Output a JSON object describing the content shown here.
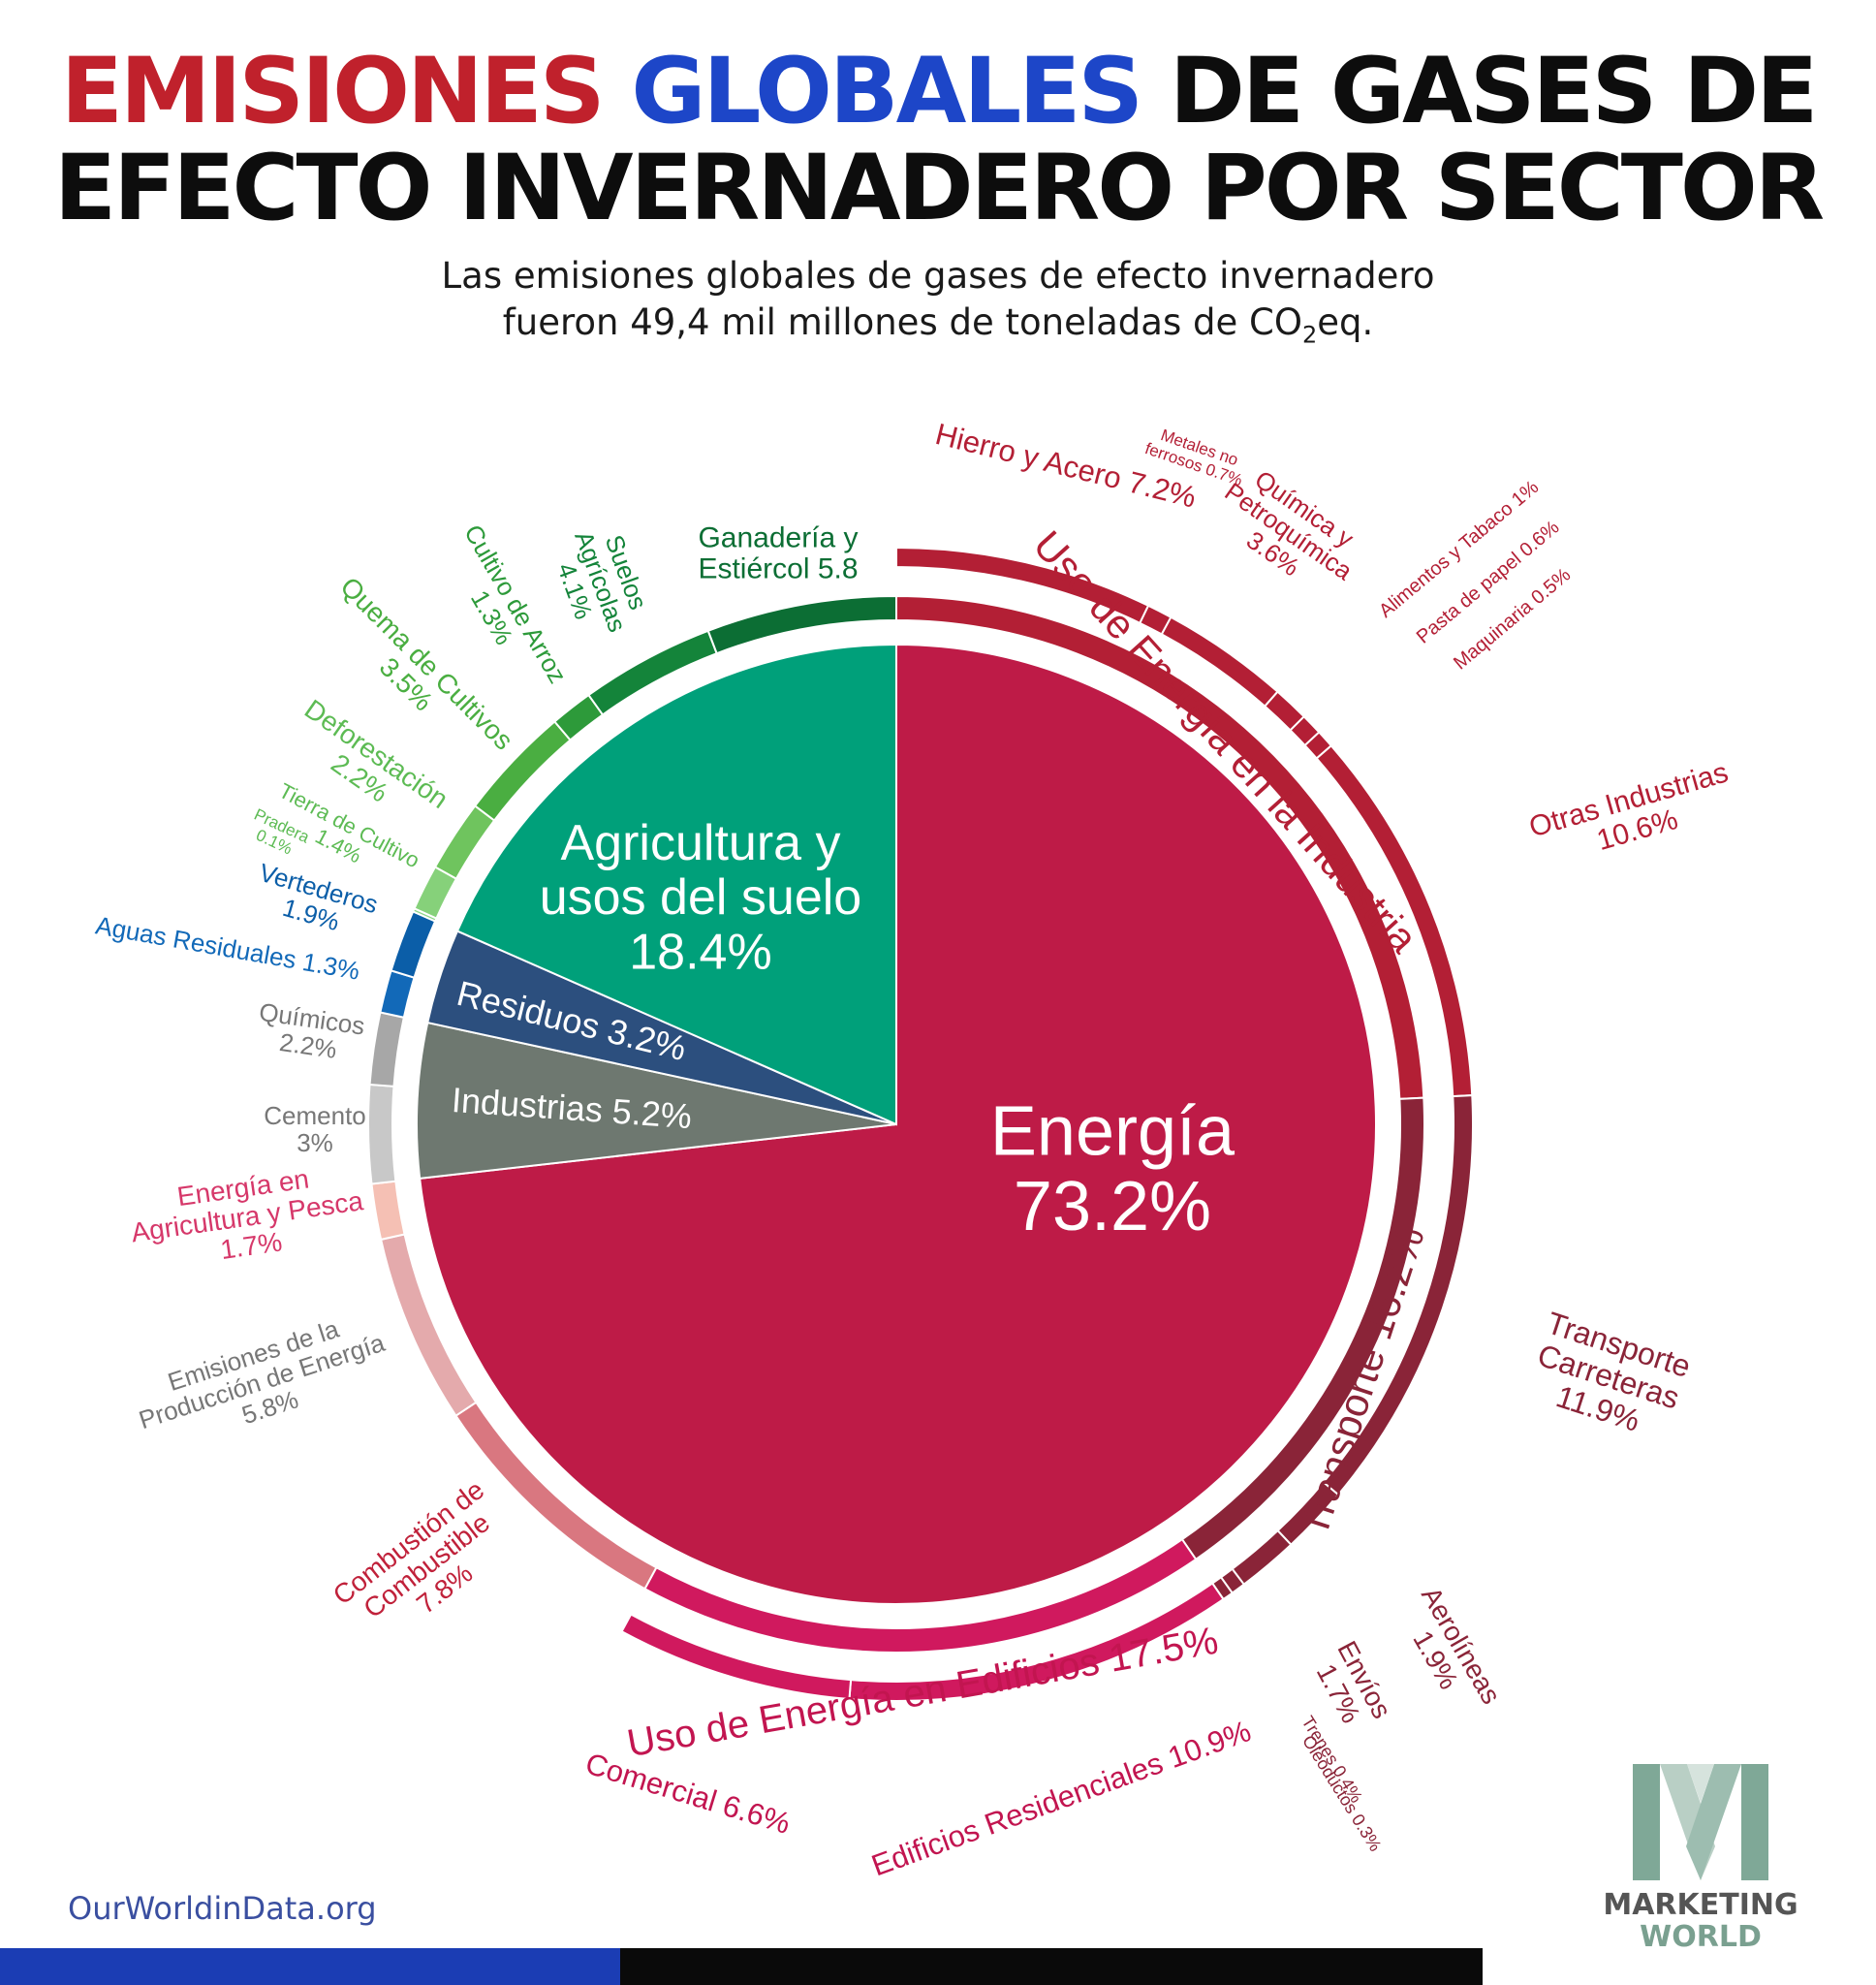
{
  "title": {
    "line1": [
      {
        "text": "EMISIONES ",
        "color": "#c0212c"
      },
      {
        "text": "GLOBALES",
        "color": "#1d46c8"
      },
      {
        "text": " DE GASES DE",
        "color": "#0d0d0d"
      }
    ],
    "line2": "EFECTO INVERNADERO POR SECTOR"
  },
  "subtitle": {
    "line1": "Las emisiones globales de gases de efecto invernadero",
    "line2_before": "fueron 49,4 mil millones de toneladas de CO",
    "line2_sub": "2",
    "line2_after": "eq."
  },
  "source": "OurWorldinData.org",
  "logo": {
    "line1": "MARKETING",
    "line2": "WORLD"
  },
  "chart_data": {
    "type": "pie",
    "title": "EMISIONES GLOBALES DE GASES DE EFECTO INVERNADERO POR SECTOR",
    "total_label": "49,4 mil millones de toneladas de CO2eq",
    "main_sectors": [
      {
        "name": "Energía",
        "value": 73.2,
        "label": "Energía\n73.2%",
        "color": "#be1b47"
      },
      {
        "name": "Industrias",
        "value": 5.2,
        "label": "Industrias 5.2%",
        "color": "#6e7870"
      },
      {
        "name": "Residuos",
        "value": 3.2,
        "label": "Residuos 3.2%",
        "color": "#2c4f7e"
      },
      {
        "name": "Agricultura y usos del suelo",
        "value": 18.4,
        "label": "Agricultura y\nusos del suelo\n18.4%",
        "color": "#00a07a"
      }
    ],
    "energy_groups": [
      {
        "name": "Uso de Energía en la Industria",
        "value": 24.2,
        "label": "Uso de Energía en la Industria",
        "color": "#b31f35"
      },
      {
        "name": "Transporte",
        "value": 16.2,
        "label": "Transporte 16.2%",
        "color": "#8a2438"
      },
      {
        "name": "Uso de Energía en Edificios",
        "value": 17.5,
        "label": "Uso de Energía en Edificios 17.5%",
        "color": "#d0195e"
      }
    ],
    "subsectors": [
      {
        "name": "Hierro y Acero",
        "value": 7.2,
        "label": "Hierro y Acero 7.2%",
        "color": "#b31f35",
        "group": "industria"
      },
      {
        "name": "Metales no ferrosos",
        "value": 0.7,
        "label": "Metales no\nferrosos 0.7%",
        "color": "#b31f35",
        "group": "industria"
      },
      {
        "name": "Química y Petroquímica",
        "value": 3.6,
        "label": "Química y\nPetroquímica\n3.6%",
        "color": "#b31f35",
        "group": "industria"
      },
      {
        "name": "Alimentos y Tabaco",
        "value": 1.0,
        "label": "Alimentos y Tabaco 1%",
        "color": "#b31f35",
        "group": "industria"
      },
      {
        "name": "Pasta de papel",
        "value": 0.6,
        "label": "Pasta de papel 0.6%",
        "color": "#b31f35",
        "group": "industria"
      },
      {
        "name": "Maquinaria",
        "value": 0.5,
        "label": "Maquinaria 0.5%",
        "color": "#b31f35",
        "group": "industria"
      },
      {
        "name": "Otras Industrias",
        "value": 10.6,
        "label": "Otras Industrias\n10.6%",
        "color": "#b31f35",
        "group": "industria"
      },
      {
        "name": "Transporte Carreteras",
        "value": 11.9,
        "label": "Transporte\nCarreteras\n11.9%",
        "color": "#8a2438",
        "group": "transporte"
      },
      {
        "name": "Aerolíneas",
        "value": 1.9,
        "label": "Aerolíneas\n1.9%",
        "color": "#8a2438",
        "group": "transporte"
      },
      {
        "name": "Envíos",
        "value": 1.7,
        "label": "Envíos\n1.7%",
        "color": "#8a2438",
        "group": "transporte"
      },
      {
        "name": "Trenes",
        "value": 0.4,
        "label": "Trenes 0.4%",
        "color": "#8a2438",
        "group": "transporte"
      },
      {
        "name": "Oleoductos",
        "value": 0.3,
        "label": "Oleoductos 0.3%",
        "color": "#8a2438",
        "group": "transporte"
      },
      {
        "name": "Edificios Residenciales",
        "value": 10.9,
        "label": "Edificios Residenciales 10.9%",
        "color": "#d0195e",
        "group": "edificios"
      },
      {
        "name": "Comercial",
        "value": 6.6,
        "label": "Comercial 6.6%",
        "color": "#d0195e",
        "group": "edificios"
      },
      {
        "name": "Combustión de Combustible",
        "value": 7.8,
        "label": "Combustión de\nCombustible\n7.8%",
        "color": "#d97780",
        "group": "otros"
      },
      {
        "name": "Emisiones de la Producción de Energía",
        "value": 5.8,
        "label": "Emisiones de la\nProducción de Energía\n5.8%",
        "color": "#e4aaac",
        "group": "otros"
      },
      {
        "name": "Energía en Agricultura y Pesca",
        "value": 1.7,
        "label": "Energía en\nAgricultura y Pesca\n1.7%",
        "color": "#f5c0b4",
        "group": "otros"
      },
      {
        "name": "Cemento",
        "value": 3.0,
        "label": "Cemento\n3%",
        "color": "#c8c8c8",
        "group": "industrias"
      },
      {
        "name": "Químicos",
        "value": 2.2,
        "label": "Químicos\n2.2%",
        "color": "#a7a7a7",
        "group": "industrias"
      },
      {
        "name": "Aguas Residuales",
        "value": 1.3,
        "label": "Aguas Residuales 1.3%",
        "color": "#1269b8",
        "group": "residuos"
      },
      {
        "name": "Vertederos",
        "value": 1.9,
        "label": "Vertederos\n1.9%",
        "color": "#0b5ea8",
        "group": "residuos"
      },
      {
        "name": "Pradera",
        "value": 0.1,
        "label": "Pradera\n0.1%",
        "color": "#8fd58a",
        "group": "agricultura"
      },
      {
        "name": "Tierra de Cultivo",
        "value": 1.4,
        "label": "Tierra de Cultivo\n1.4%",
        "color": "#86d17a",
        "group": "agricultura"
      },
      {
        "name": "Deforestación",
        "value": 2.2,
        "label": "Deforestación\n2.2%",
        "color": "#6fc45e",
        "group": "agricultura"
      },
      {
        "name": "Quema de Cultivos",
        "value": 3.5,
        "label": "Quema de Cultivos\n3.5%",
        "color": "#4aae41",
        "group": "agricultura"
      },
      {
        "name": "Cultivo de Arroz",
        "value": 1.3,
        "label": "Cultivo de Arroz\n1.3%",
        "color": "#2d9a3a",
        "group": "agricultura"
      },
      {
        "name": "Suelos Agrícolas",
        "value": 4.1,
        "label": "Suelos\nAgrícolas\n4.1%",
        "color": "#14843a",
        "group": "agricultura"
      },
      {
        "name": "Ganadería y Estiércol",
        "value": 5.8,
        "label": "Ganadería y\nEstiércol 5.8",
        "color": "#0c6e34",
        "group": "agricultura"
      }
    ]
  }
}
